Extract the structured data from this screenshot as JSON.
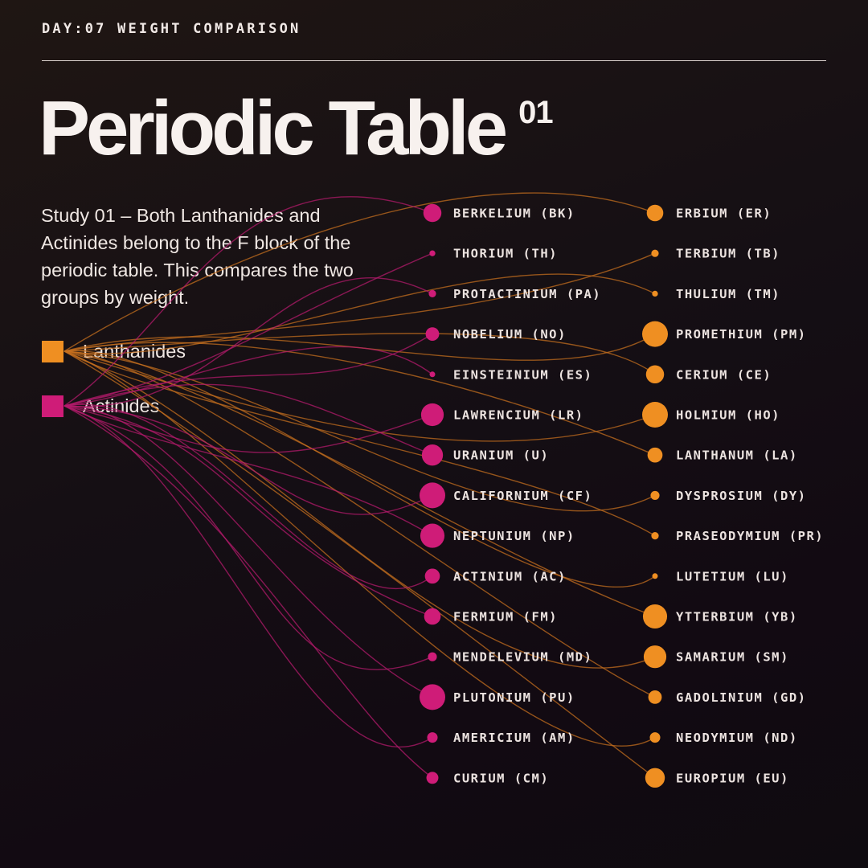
{
  "header": {
    "kicker": "DAY:07 WEIGHT COMPARISON"
  },
  "title": {
    "main": "Periodic Table",
    "superscript": "01"
  },
  "description": "Study 01 – Both Lanthanides and Actinides belong to the F block of the periodic table. This compares the two groups by weight.",
  "legend": [
    {
      "label": "Lanthanides",
      "color": "#ef8f22"
    },
    {
      "label": "Actinides",
      "color": "#cf1c78"
    }
  ],
  "colors": {
    "lanthanide": "#ef8f22",
    "actinide": "#cf1c78",
    "lanthanide_line": "#c8701e",
    "actinide_line": "#b71b6e"
  },
  "chart_data": {
    "type": "diagram",
    "actinides": [
      {
        "label": "BERKELIUM (BK)",
        "rank": 6
      },
      {
        "label": "THORIUM (TH)",
        "rank": 14
      },
      {
        "label": "PROTACTINIUM (PA)",
        "rank": 13
      },
      {
        "label": "NOBELIUM (NO)",
        "rank": 9
      },
      {
        "label": "EINSTEINIUM (ES)",
        "rank": 15
      },
      {
        "label": "LAWRENCIUM (LR)",
        "rank": 3
      },
      {
        "label": "URANIUM (U)",
        "rank": 4
      },
      {
        "label": "CALIFORNIUM (CF)",
        "rank": 1
      },
      {
        "label": "NEPTUNIUM (NP)",
        "rank": 2
      },
      {
        "label": "ACTINIUM (AC)",
        "rank": 8
      },
      {
        "label": "FERMIUM (FM)",
        "rank": 7
      },
      {
        "label": "MENDELEVIUM (MD)",
        "rank": 12
      },
      {
        "label": "PLUTONIUM (PU)",
        "rank": 1
      },
      {
        "label": "AMERICIUM (AM)",
        "rank": 11
      },
      {
        "label": "CURIUM (CM)",
        "rank": 10
      }
    ],
    "lanthanides": [
      {
        "label": "ERBIUM (ER)",
        "rank": 7
      },
      {
        "label": "TERBIUM (TB)",
        "rank": 13
      },
      {
        "label": "THULIUM (TM)",
        "rank": 14
      },
      {
        "label": "PROMETHIUM (PM)",
        "rank": 1
      },
      {
        "label": "CERIUM (CE)",
        "rank": 6
      },
      {
        "label": "HOLMIUM (HO)",
        "rank": 1
      },
      {
        "label": "LANTHANUM (LA)",
        "rank": 8
      },
      {
        "label": "DYSPROSIUM (DY)",
        "rank": 12
      },
      {
        "label": "PRASEODYMIUM (PR)",
        "rank": 13
      },
      {
        "label": "LUTETIUM (LU)",
        "rank": 15
      },
      {
        "label": "YTTERBIUM (YB)",
        "rank": 2
      },
      {
        "label": "SAMARIUM (SM)",
        "rank": 3
      },
      {
        "label": "GADOLINIUM (GD)",
        "rank": 9
      },
      {
        "label": "NEODYMIUM (ND)",
        "rank": 11
      },
      {
        "label": "EUROPIUM (EU)",
        "rank": 5
      }
    ]
  }
}
